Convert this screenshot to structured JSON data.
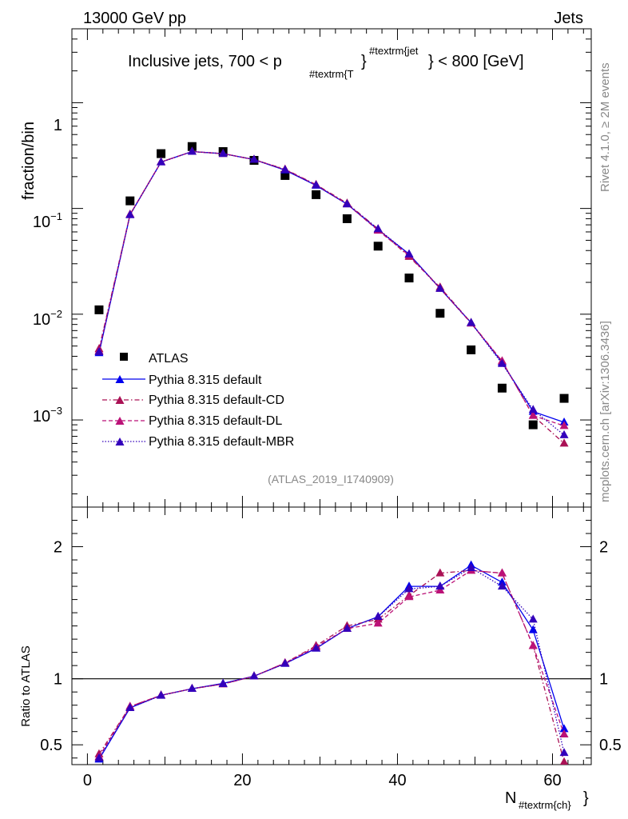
{
  "header": {
    "energy_label": "13000 GeV pp",
    "category_label": "Jets"
  },
  "plot_title": {
    "prefix": "Inclusive jets, 700 < p",
    "sub": "#textrm{T",
    "brace": "}",
    "sup": "#textrm{jet",
    "suffix": "} < 800 [GeV]"
  },
  "side_labels": {
    "rivet": "Rivet 4.1.0, ≥ 2M events",
    "mcplots": "mcplots.cern.ch [arXiv:1306.3436]"
  },
  "watermark": "(ATLAS_2019_I1740909)",
  "colors": {
    "data": "#000000",
    "default": "#0000ee",
    "default_cd": "#aa1155",
    "default_dl": "#bb1177",
    "default_mbr": "#3300bb",
    "reference_line": "#000000"
  },
  "chart_data": [
    {
      "type": "scatter",
      "panel": "main",
      "yscale": "log",
      "ylabel": "fraction/bin",
      "ylim": [
        0.00015,
        5
      ],
      "xlim": [
        -2,
        65
      ],
      "y_tick_labels": [
        "1",
        "10^-1",
        "10^-2",
        "10^-3"
      ],
      "x": [
        1.5,
        5.5,
        9.5,
        13.5,
        17.5,
        21.5,
        25.5,
        29.5,
        33.5,
        37.5,
        41.5,
        45.5,
        49.5,
        53.5,
        57.5,
        61.5
      ],
      "series": [
        {
          "name": "ATLAS",
          "key": "data",
          "style": "markers",
          "marker": "square",
          "values": [
            0.011,
            0.118,
            0.33,
            0.385,
            0.345,
            0.285,
            0.205,
            0.135,
            0.08,
            0.044,
            0.022,
            0.0102,
            0.0046,
            0.002,
            0.0009,
            0.0016
          ]
        },
        {
          "name": "Pythia 8.315 default",
          "key": "default",
          "dash": "solid",
          "values": [
            0.0043,
            0.087,
            0.275,
            0.345,
            0.33,
            0.29,
            0.23,
            0.165,
            0.11,
            0.063,
            0.037,
            0.0175,
            0.0083,
            0.0035,
            0.0012,
            0.00095
          ]
        },
        {
          "name": "Pythia 8.315 default-CD",
          "key": "default_cd",
          "dash": "dashdot",
          "values": [
            0.0047,
            0.088,
            0.275,
            0.345,
            0.33,
            0.29,
            0.235,
            0.168,
            0.112,
            0.064,
            0.035,
            0.018,
            0.0083,
            0.0036,
            0.0011,
            0.0006
          ]
        },
        {
          "name": "Pythia 8.315 default-DL",
          "key": "default_dl",
          "dash": "dashed",
          "values": [
            0.0045,
            0.088,
            0.275,
            0.345,
            0.33,
            0.29,
            0.233,
            0.167,
            0.11,
            0.062,
            0.036,
            0.0175,
            0.0082,
            0.0036,
            0.0011,
            0.00088
          ]
        },
        {
          "name": "Pythia 8.315 default-MBR",
          "key": "default_mbr",
          "dash": "dotted",
          "values": [
            0.0044,
            0.087,
            0.274,
            0.345,
            0.33,
            0.29,
            0.232,
            0.166,
            0.11,
            0.064,
            0.037,
            0.0175,
            0.0083,
            0.0034,
            0.00125,
            0.00072
          ]
        }
      ]
    },
    {
      "type": "line",
      "panel": "ratio",
      "ylabel": "Ratio to ATLAS",
      "xlabel_main": "N",
      "xlabel_sub": "#textrm{ch}",
      "ylim": [
        0.35,
        2.3
      ],
      "xlim": [
        -2,
        65
      ],
      "x_ticks": [
        0,
        20,
        40,
        60
      ],
      "x_tick_labels": [
        "0",
        "20",
        "40",
        "60"
      ],
      "y_ticks": [
        0.5,
        1,
        2
      ],
      "y_tick_labels": [
        "0.5",
        "1",
        "2"
      ],
      "reference_value": 1,
      "x": [
        1.5,
        5.5,
        9.5,
        13.5,
        17.5,
        21.5,
        25.5,
        29.5,
        33.5,
        37.5,
        41.5,
        45.5,
        49.5,
        53.5,
        57.5,
        61.5
      ],
      "series": [
        {
          "name": "Pythia 8.315 default",
          "key": "default",
          "dash": "solid",
          "values": [
            0.39,
            0.78,
            0.875,
            0.925,
            0.965,
            1.02,
            1.115,
            1.23,
            1.38,
            1.47,
            1.7,
            1.7,
            1.86,
            1.73,
            1.37,
            0.62
          ]
        },
        {
          "name": "Pythia 8.315 default-CD",
          "key": "default_cd",
          "dash": "dashdot",
          "values": [
            0.43,
            0.79,
            0.875,
            0.925,
            0.96,
            1.02,
            1.12,
            1.25,
            1.4,
            1.45,
            1.63,
            1.8,
            1.82,
            1.8,
            1.25,
            0.37
          ]
        },
        {
          "name": "Pythia 8.315 default-DL",
          "key": "default_dl",
          "dash": "dashed",
          "values": [
            0.41,
            0.79,
            0.875,
            0.925,
            0.96,
            1.02,
            1.12,
            1.24,
            1.38,
            1.42,
            1.62,
            1.67,
            1.82,
            1.8,
            1.25,
            0.58
          ]
        },
        {
          "name": "Pythia 8.315 default-MBR",
          "key": "default_mbr",
          "dash": "dotted",
          "values": [
            0.4,
            0.78,
            0.873,
            0.925,
            0.962,
            1.02,
            1.115,
            1.23,
            1.38,
            1.47,
            1.68,
            1.7,
            1.84,
            1.7,
            1.45,
            0.44
          ]
        }
      ]
    }
  ]
}
